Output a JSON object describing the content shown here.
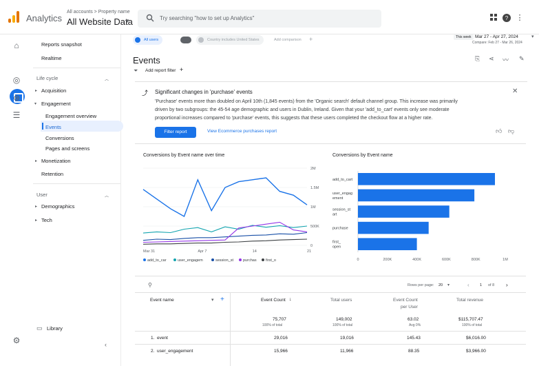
{
  "topbar": {
    "app_name": "Analytics",
    "account_path": "All accounts > Property name",
    "account_name": "All Website Data",
    "search_placeholder": "Try searching \"how to set up Analytics\""
  },
  "nav": {
    "reports_snapshot": "Reports snapshot",
    "realtime": "Realtime",
    "life_cycle": "Life cycle",
    "acquisition": "Acquisition",
    "engagement": "Engagement",
    "engagement_overview": "Engagement overview",
    "events": "Events",
    "conversions": "Conversions",
    "pages_screens": "Pages and screens",
    "monetization": "Monetization",
    "retention": "Retention",
    "user": "User",
    "demographics": "Demographics",
    "tech": "Tech",
    "library": "Library"
  },
  "chips": {
    "all_users": "All users",
    "country": "Country includes United States",
    "add_comparison": "Add comparison"
  },
  "date": {
    "this_week": "This week",
    "range": "Mar 27 - Apr 27, 2024",
    "compare": "Compare: Feb 27 - Mar 26, 2024"
  },
  "page_title": "Events",
  "add_filter": "Add report filter",
  "insight": {
    "title": "Significant changes in 'purchase' events",
    "line1": "'Purchase' events more than doubled on April 10th (1,845 events) from the 'Organic search' default channel group. This increase was primarily",
    "line2": "driven by two subgroups: the 45-54 age demographic and users in Dublin, Ireland. Given that your 'add_to_cart' events only see moderate",
    "line3": "proportional increases compared to 'purchase' events, this suggests that these users completed the checkout flow at a higher rate.",
    "btn": "Filter report",
    "link": "View Ecommerce purchases report"
  },
  "colors": {
    "accent": "#1a73e8",
    "s1": "#1a73e8",
    "s2": "#12a4af",
    "s3": "#174ea6",
    "s4": "#9334e6",
    "s5": "#3c4043"
  },
  "chart_data": [
    {
      "type": "line",
      "title": "Conversions by Event name over time",
      "x": [
        "Mar 31",
        "Apr 2",
        "Apr 4",
        "Apr 6",
        "Apr 7",
        "Apr 9",
        "Apr 11",
        "Apr 13",
        "Apr 14",
        "Apr 16",
        "Apr 18",
        "Apr 20",
        "Apr 21"
      ],
      "x_ticks": [
        "Mar 31",
        "Apr 7",
        "14",
        "21"
      ],
      "y_ticks": [
        "0",
        "500K",
        "1M",
        "1.5M",
        "2M"
      ],
      "ylim": [
        0,
        2000000
      ],
      "series": [
        {
          "name": "add_to_car",
          "values": [
            1450000,
            1200000,
            950000,
            750000,
            1700000,
            900000,
            1500000,
            1650000,
            1700000,
            1750000,
            1400000,
            1300000,
            1050000
          ]
        },
        {
          "name": "user_engagem",
          "values": [
            320000,
            350000,
            330000,
            420000,
            460000,
            350000,
            480000,
            420000,
            520000,
            470000,
            510000,
            460000,
            500000
          ]
        },
        {
          "name": "session_st",
          "values": [
            130000,
            160000,
            150000,
            180000,
            200000,
            200000,
            220000,
            240000,
            260000,
            270000,
            300000,
            290000,
            330000
          ]
        },
        {
          "name": "purchas",
          "values": [
            80000,
            90000,
            100000,
            110000,
            120000,
            130000,
            140000,
            450000,
            500000,
            550000,
            600000,
            400000,
            350000
          ]
        },
        {
          "name": "first_o",
          "values": [
            30000,
            40000,
            40000,
            50000,
            60000,
            60000,
            80000,
            90000,
            110000,
            120000,
            140000,
            150000,
            160000
          ]
        }
      ]
    },
    {
      "type": "bar",
      "title": "Conversions by Event name",
      "categories": [
        "add_to_cart",
        "user_engagement",
        "session_start",
        "purchase",
        "first_open"
      ],
      "category_labels": [
        [
          "add_to_cart"
        ],
        [
          "user_engag",
          "ement"
        ],
        [
          "session_st",
          "art"
        ],
        [
          "purchase"
        ],
        [
          "first_",
          "open"
        ]
      ],
      "values": [
        930000,
        790000,
        620000,
        480000,
        400000
      ],
      "x_ticks": [
        "0",
        "200K",
        "400K",
        "600K",
        "800K",
        "1M"
      ],
      "xlim": [
        0,
        1000000
      ]
    }
  ],
  "table": {
    "rows_per_page_label": "Rows per page:",
    "rows_per_page": "20",
    "page_current": "1",
    "page_total": "of 8",
    "headers": {
      "event_name": "Event name",
      "event_count": "Event Count",
      "total_users": "Total users",
      "event_count_per_user_1": "Event Count",
      "event_count_per_user_2": "per User",
      "total_revenue": "Total revenue"
    },
    "totals": {
      "event_count": "75,707",
      "event_count_sub": "100% of total",
      "total_users": "149,002",
      "total_users_sub": "100% of total",
      "per_user": "63.02",
      "per_user_sub": "Avg 0%",
      "revenue": "$115,707.47",
      "revenue_sub": "100% of total"
    },
    "rows": [
      {
        "idx": "1.",
        "name": "event",
        "count": "29,016",
        "users": "19,016",
        "per_user": "145.43",
        "revenue": "$6,016.00"
      },
      {
        "idx": "2.",
        "name": "user_engagement",
        "count": "15,966",
        "users": "11,966",
        "per_user": "88.35",
        "revenue": "$3,966.00"
      }
    ]
  }
}
